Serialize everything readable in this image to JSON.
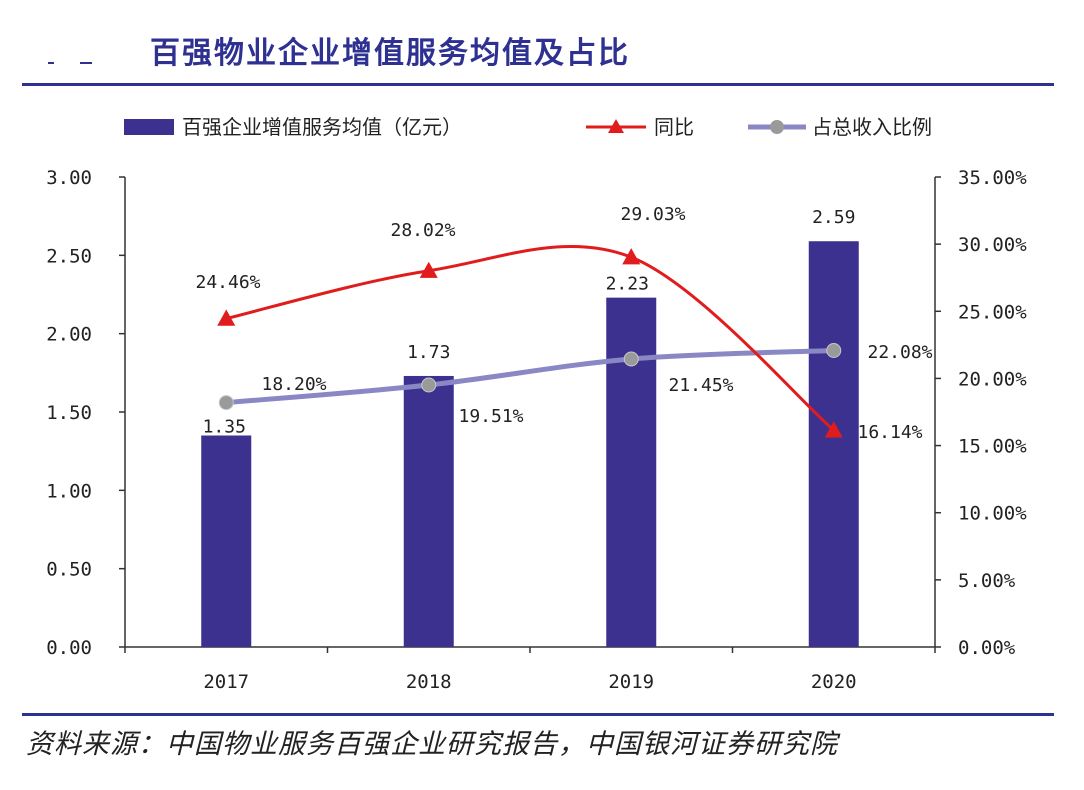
{
  "header": {
    "title": "百强物业企业增值服务均值及占比"
  },
  "footer": {
    "source": "资料来源：中国物业服务百强企业研究报告，中国银河证券研究院"
  },
  "colors": {
    "bar": "#3c318f",
    "yoy_line": "#e01c1c",
    "share_line": "#8a87c5",
    "share_marker": "#9a9a9a",
    "axis": "#333333"
  },
  "chart_data": {
    "type": "bar",
    "title": "百强物业企业增值服务均值及占比",
    "categories": [
      "2017",
      "2018",
      "2019",
      "2020"
    ],
    "series": [
      {
        "name": "百强企业增值服务均值（亿元）",
        "type": "bar",
        "axis": "left",
        "values": [
          1.35,
          1.73,
          2.23,
          2.59
        ],
        "labels": [
          "1.35",
          "1.73",
          "2.23",
          "2.59"
        ]
      },
      {
        "name": "同比",
        "type": "line",
        "axis": "right",
        "marker": "triangle",
        "values": [
          24.46,
          28.02,
          29.03,
          16.14
        ],
        "labels": [
          "24.46%",
          "28.02%",
          "29.03%",
          "16.14%"
        ]
      },
      {
        "name": "占总收入比例",
        "type": "line",
        "axis": "right",
        "marker": "circle",
        "values": [
          18.2,
          19.51,
          21.45,
          22.08
        ],
        "labels": [
          "18.20%",
          "19.51%",
          "21.45%",
          "22.08%"
        ]
      }
    ],
    "left_axis": {
      "ylim": [
        0,
        3
      ],
      "ticks": [
        "3.00",
        "2.50",
        "2.00",
        "1.50",
        "1.00",
        "0.50",
        "0.00"
      ],
      "tick_values": [
        3.0,
        2.5,
        2.0,
        1.5,
        1.0,
        0.5,
        0.0
      ]
    },
    "right_axis": {
      "ylim": [
        0,
        35
      ],
      "ticks": [
        "35.00%",
        "30.00%",
        "25.00%",
        "20.00%",
        "15.00%",
        "10.00%",
        "5.00%",
        "0.00%"
      ],
      "tick_values": [
        35,
        30,
        25,
        20,
        15,
        10,
        5,
        0
      ]
    },
    "legend_position": "top",
    "grid": false
  }
}
